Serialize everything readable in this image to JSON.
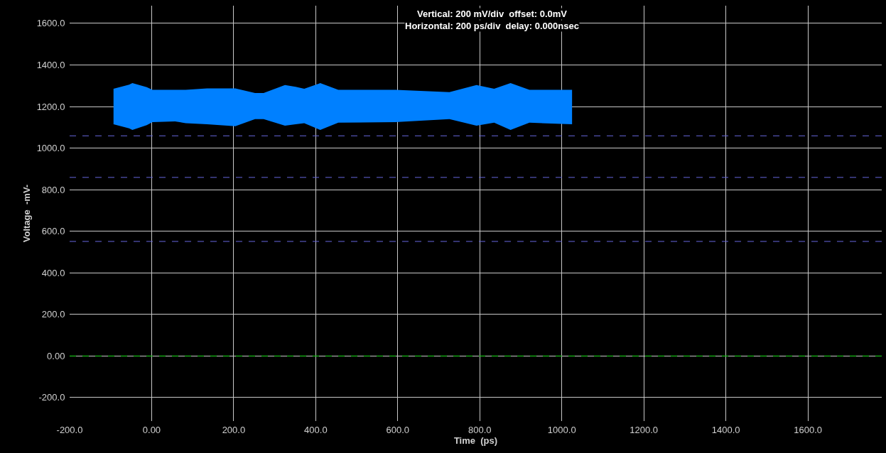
{
  "chart_data": {
    "type": "line",
    "xlabel": "Time  (ps)",
    "ylabel": "Voltage  -mV-",
    "annotations": [
      "Vertical: 200 mV/div  offset: 0.0mV",
      "Horizontal: 200 ps/div  delay: 0.000nsec"
    ],
    "series": [
      {
        "color": "#0080ff",
        "x": [
          -93,
          -55,
          -47,
          -12,
          2,
          57,
          83,
          135,
          204,
          252,
          273,
          325,
          351,
          372,
          408,
          411,
          455,
          594,
          726,
          792,
          835,
          875,
          921,
          1025
        ],
        "values": [
          null,
          null,
          null,
          null,
          null,
          null,
          null,
          null,
          null,
          null,
          null,
          null,
          null,
          null,
          null,
          null,
          null,
          null,
          null,
          null,
          null,
          null,
          null,
          null
        ],
        "lower": [
          1115,
          1095,
          1087,
          1110,
          1125,
          1128,
          1120,
          1115,
          1105,
          1139,
          1139,
          1108,
          1115,
          1120,
          1090,
          1087,
          1122,
          1125,
          1139,
          1108,
          1122,
          1087,
          1122,
          1115
        ],
        "upper": [
          1285,
          1305,
          1313,
          1293,
          1280,
          1280,
          1280,
          1287,
          1287,
          1265,
          1265,
          1303,
          1295,
          1285,
          1310,
          1313,
          1280,
          1280,
          1269,
          1303,
          1285,
          1313,
          1280,
          1280
        ]
      }
    ],
    "xlim": [
      -200,
      1780
    ],
    "ylim": [
      -313,
      1685
    ],
    "xticks": [
      {
        "value": -200,
        "label": "-200.0"
      },
      {
        "value": 0,
        "label": "0.00"
      },
      {
        "value": 200,
        "label": "200.0"
      },
      {
        "value": 400,
        "label": "400.0"
      },
      {
        "value": 600,
        "label": "600.0"
      },
      {
        "value": 800,
        "label": "800.0"
      },
      {
        "value": 1000,
        "label": "1000.0"
      },
      {
        "value": 1200,
        "label": "1200.0"
      },
      {
        "value": 1400,
        "label": "1400.0"
      },
      {
        "value": 1600,
        "label": "1600.0"
      }
    ],
    "yticks": [
      {
        "value": -200,
        "label": "-200.0"
      },
      {
        "value": 0,
        "label": "0.00"
      },
      {
        "value": 200,
        "label": "200.0"
      },
      {
        "value": 400,
        "label": "400.0"
      },
      {
        "value": 600,
        "label": "600.0"
      },
      {
        "value": 800,
        "label": "800.0"
      },
      {
        "value": 1000,
        "label": "1000.0"
      },
      {
        "value": 1200,
        "label": "1200.0"
      },
      {
        "value": 1400,
        "label": "1400.0"
      },
      {
        "value": 1600,
        "label": "1600.0"
      }
    ],
    "ref_lines": [
      {
        "axis": "y",
        "value": 1059,
        "color": "#6666dd",
        "line_style": "dashed"
      },
      {
        "axis": "y",
        "value": 859,
        "color": "#6666dd",
        "line_style": "dashed"
      },
      {
        "axis": "y",
        "value": 551,
        "color": "#6666dd",
        "line_style": "dashed"
      },
      {
        "axis": "y",
        "value": 0,
        "color": "#00cc00",
        "line_style": "dashed"
      }
    ],
    "grid": true
  }
}
